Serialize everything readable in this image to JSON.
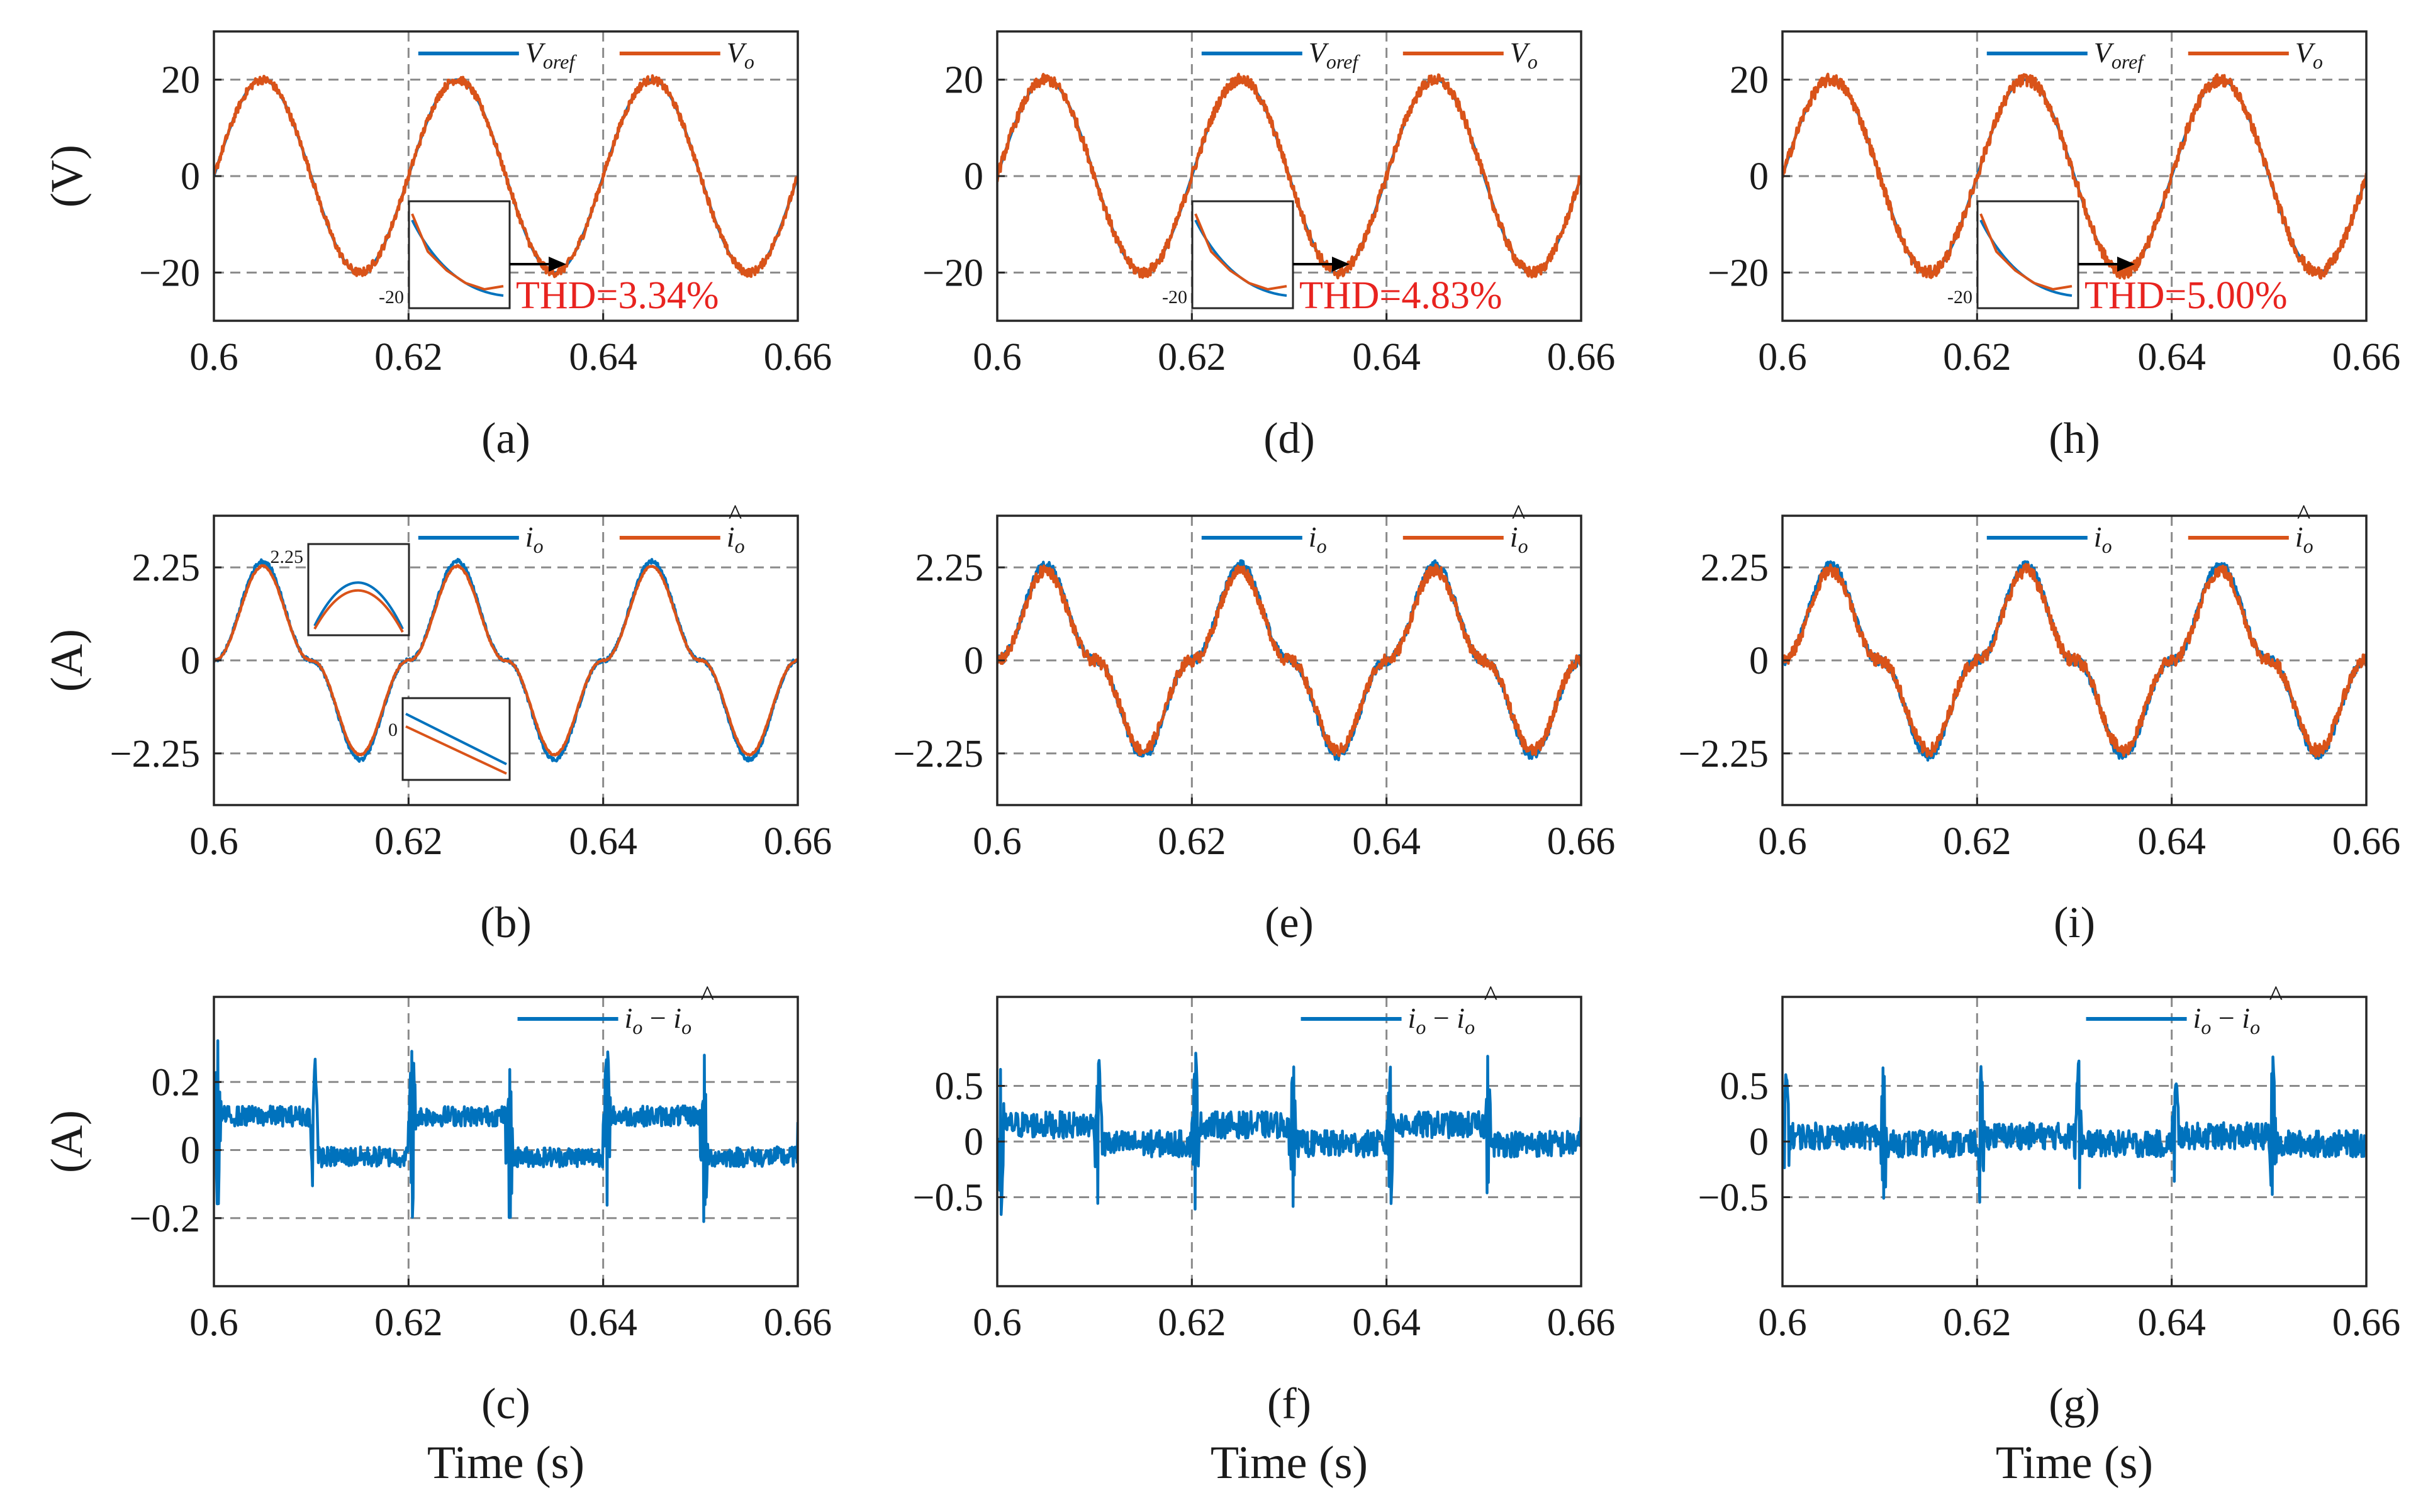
{
  "colors": {
    "blue": "#0072BD",
    "orange": "#D95319",
    "thd": "#e8231f"
  },
  "x_axis_label": "Time (s)",
  "chart_data": [
    {
      "id": "a",
      "type": "line",
      "panel_label": "(a)",
      "ylabel": "(V)",
      "x": [
        0.6,
        0.66
      ],
      "xlim": [
        0.6,
        0.66
      ],
      "ylim": [
        -30,
        30
      ],
      "xticks": [
        0.6,
        0.62,
        0.64,
        0.66
      ],
      "xtick_labels": [
        "0.6",
        "0.62",
        "0.64",
        "0.66"
      ],
      "yticks": [
        20,
        0,
        -20
      ],
      "ytick_labels": [
        "20",
        "0",
        "−20"
      ],
      "waveform": {
        "kind": "sine",
        "amplitude": 20,
        "frequency_hz": 50
      },
      "series": [
        {
          "name": "V_oref",
          "label_main": "V",
          "label_sub": "oref",
          "color": "#0072BD",
          "noise": 0.0
        },
        {
          "name": "V_o",
          "label_main": "V",
          "label_sub": "o",
          "color": "#D95319",
          "noise": 0.9
        }
      ],
      "annotation": {
        "text": "THD=3.34%",
        "inset_tick": "-20"
      }
    },
    {
      "id": "d",
      "type": "line",
      "panel_label": "(d)",
      "ylabel": "",
      "x": [
        0.6,
        0.66
      ],
      "xlim": [
        0.6,
        0.66
      ],
      "ylim": [
        -30,
        30
      ],
      "xticks": [
        0.6,
        0.62,
        0.64,
        0.66
      ],
      "xtick_labels": [
        "0.6",
        "0.62",
        "0.64",
        "0.66"
      ],
      "yticks": [
        20,
        0,
        -20
      ],
      "ytick_labels": [
        "20",
        "0",
        "−20"
      ],
      "waveform": {
        "kind": "sine",
        "amplitude": 20,
        "frequency_hz": 50
      },
      "series": [
        {
          "name": "V_oref",
          "label_main": "V",
          "label_sub": "oref",
          "color": "#0072BD",
          "noise": 0.0
        },
        {
          "name": "V_o",
          "label_main": "V",
          "label_sub": "o",
          "color": "#D95319",
          "noise": 1.2
        }
      ],
      "annotation": {
        "text": "THD=4.83%",
        "inset_tick": "-20"
      }
    },
    {
      "id": "h",
      "type": "line",
      "panel_label": "(h)",
      "ylabel": "",
      "x": [
        0.6,
        0.66
      ],
      "xlim": [
        0.6,
        0.66
      ],
      "ylim": [
        -30,
        30
      ],
      "xticks": [
        0.6,
        0.62,
        0.64,
        0.66
      ],
      "xtick_labels": [
        "0.6",
        "0.62",
        "0.64",
        "0.66"
      ],
      "yticks": [
        20,
        0,
        -20
      ],
      "ytick_labels": [
        "20",
        "0",
        "−20"
      ],
      "waveform": {
        "kind": "sine",
        "amplitude": 20,
        "frequency_hz": 50
      },
      "series": [
        {
          "name": "V_oref",
          "label_main": "V",
          "label_sub": "oref",
          "color": "#0072BD",
          "noise": 0.0
        },
        {
          "name": "V_o",
          "label_main": "V",
          "label_sub": "o",
          "color": "#D95319",
          "noise": 1.3
        }
      ],
      "annotation": {
        "text": "THD=5.00%",
        "inset_tick": "-20"
      }
    },
    {
      "id": "b",
      "type": "line",
      "panel_label": "(b)",
      "ylabel": "(A)",
      "x": [
        0.6,
        0.66
      ],
      "xlim": [
        0.6,
        0.66
      ],
      "ylim": [
        -3.5,
        3.5
      ],
      "xticks": [
        0.6,
        0.62,
        0.64,
        0.66
      ],
      "xtick_labels": [
        "0.6",
        "0.62",
        "0.64",
        "0.66"
      ],
      "yticks": [
        2.25,
        0,
        -2.25
      ],
      "ytick_labels": [
        "2.25",
        "0",
        "−2.25"
      ],
      "waveform": {
        "kind": "cusp",
        "amplitude": 2.4,
        "frequency_hz": 50
      },
      "series": [
        {
          "name": "i_o",
          "label_main": "i",
          "label_sub": "o",
          "hat": false,
          "color": "#0072BD",
          "noise": 0.05
        },
        {
          "name": "i_o_hat",
          "label_main": "i",
          "label_sub": "o",
          "hat": true,
          "color": "#D95319",
          "noise": 0.02
        }
      ],
      "annotation": {
        "inset_tick_top": "2.25",
        "inset_tick_bottom": "0"
      }
    },
    {
      "id": "e",
      "type": "line",
      "panel_label": "(e)",
      "ylabel": "",
      "x": [
        0.6,
        0.66
      ],
      "xlim": [
        0.6,
        0.66
      ],
      "ylim": [
        -3.5,
        3.5
      ],
      "xticks": [
        0.6,
        0.62,
        0.64,
        0.66
      ],
      "xtick_labels": [
        "0.6",
        "0.62",
        "0.64",
        "0.66"
      ],
      "yticks": [
        2.25,
        0,
        -2.25
      ],
      "ytick_labels": [
        "2.25",
        "0",
        "−2.25"
      ],
      "waveform": {
        "kind": "cusp",
        "amplitude": 2.3,
        "frequency_hz": 50
      },
      "series": [
        {
          "name": "i_o",
          "label_main": "i",
          "label_sub": "o",
          "hat": false,
          "color": "#0072BD",
          "noise": 0.12
        },
        {
          "name": "i_o_hat",
          "label_main": "i",
          "label_sub": "o",
          "hat": true,
          "color": "#D95319",
          "noise": 0.15
        }
      ]
    },
    {
      "id": "i",
      "type": "line",
      "panel_label": "(i)",
      "ylabel": "",
      "x": [
        0.6,
        0.66
      ],
      "xlim": [
        0.6,
        0.66
      ],
      "ylim": [
        -3.5,
        3.5
      ],
      "xticks": [
        0.6,
        0.62,
        0.64,
        0.66
      ],
      "xtick_labels": [
        "0.6",
        "0.62",
        "0.64",
        "0.66"
      ],
      "yticks": [
        2.25,
        0,
        -2.25
      ],
      "ytick_labels": [
        "2.25",
        "0",
        "−2.25"
      ],
      "waveform": {
        "kind": "cusp",
        "amplitude": 2.3,
        "frequency_hz": 50
      },
      "series": [
        {
          "name": "i_o",
          "label_main": "i",
          "label_sub": "o",
          "hat": false,
          "color": "#0072BD",
          "noise": 0.12
        },
        {
          "name": "i_o_hat",
          "label_main": "i",
          "label_sub": "o",
          "hat": true,
          "color": "#D95319",
          "noise": 0.16
        }
      ]
    },
    {
      "id": "c",
      "type": "line",
      "panel_label": "(c)",
      "ylabel": "(A)",
      "x": [
        0.6,
        0.66
      ],
      "xlim": [
        0.6,
        0.66
      ],
      "ylim": [
        -0.4,
        0.45
      ],
      "xticks": [
        0.6,
        0.62,
        0.64,
        0.66
      ],
      "xtick_labels": [
        "0.6",
        "0.62",
        "0.64",
        "0.66"
      ],
      "yticks": [
        0.2,
        0,
        -0.2
      ],
      "ytick_labels": [
        "0.2",
        "0",
        "−0.2"
      ],
      "waveform": {
        "kind": "error",
        "level": 0.1,
        "spike": 0.2,
        "noise": 0.03
      },
      "series": [
        {
          "name": "i_o - i_o_hat",
          "label_main": "i",
          "label_sub": "o",
          "error": true,
          "color": "#0072BD"
        }
      ]
    },
    {
      "id": "f",
      "type": "line",
      "panel_label": "(f)",
      "ylabel": "",
      "x": [
        0.6,
        0.66
      ],
      "xlim": [
        0.6,
        0.66
      ],
      "ylim": [
        -1.3,
        1.3
      ],
      "xticks": [
        0.6,
        0.62,
        0.64,
        0.66
      ],
      "xtick_labels": [
        "0.6",
        "0.62",
        "0.64",
        "0.66"
      ],
      "yticks": [
        0.5,
        0,
        -0.5
      ],
      "ytick_labels": [
        "0.5",
        "0",
        "−0.5"
      ],
      "waveform": {
        "kind": "error",
        "level": 0.15,
        "spike": 0.55,
        "noise": 0.12
      },
      "series": [
        {
          "name": "i_o - i_o_hat",
          "label_main": "i",
          "label_sub": "o",
          "error": true,
          "color": "#0072BD"
        }
      ]
    },
    {
      "id": "g",
      "type": "line",
      "panel_label": "(g)",
      "ylabel": "",
      "x": [
        0.6,
        0.66
      ],
      "xlim": [
        0.6,
        0.66
      ],
      "ylim": [
        -1.3,
        1.3
      ],
      "xticks": [
        0.6,
        0.62,
        0.64,
        0.66
      ],
      "xtick_labels": [
        "0.6",
        "0.62",
        "0.64",
        "0.66"
      ],
      "yticks": [
        0.5,
        0,
        -0.5
      ],
      "ytick_labels": [
        "0.5",
        "0",
        "−0.5"
      ],
      "waveform": {
        "kind": "error",
        "level": 0.05,
        "spike": 0.55,
        "noise": 0.12
      },
      "series": [
        {
          "name": "i_o - i_o_hat",
          "label_main": "i",
          "label_sub": "o",
          "error": true,
          "color": "#0072BD"
        }
      ]
    }
  ]
}
